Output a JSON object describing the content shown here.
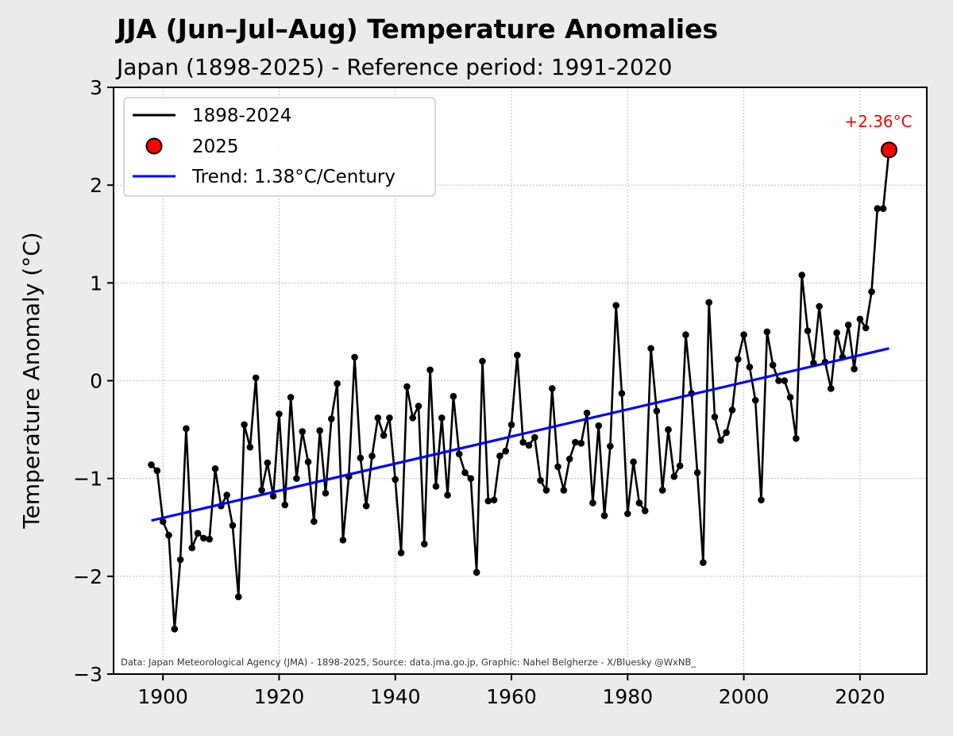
{
  "chart_data": {
    "type": "line",
    "title": "JJA (Jun–Jul–Aug) Temperature Anomalies",
    "subtitle": "Japan (1898-2025) - Reference period: 1991-2020",
    "ylabel": "Temperature Anomaly (°C)",
    "xlabel": "",
    "xlim": [
      1891.5,
      2031.5
    ],
    "ylim": [
      -3,
      3
    ],
    "xticks": [
      1900,
      1920,
      1940,
      1960,
      1980,
      2000,
      2020
    ],
    "yticks": [
      -3,
      -2,
      -1,
      0,
      1,
      2,
      3
    ],
    "ytick_labels": [
      "−3",
      "−2",
      "−1",
      "0",
      "1",
      "2",
      "3"
    ],
    "grid": true,
    "legend_position": "top-left",
    "series": [
      {
        "name": "1898-2024",
        "color": "#000000",
        "x": [
          1898,
          1899,
          1900,
          1901,
          1902,
          1903,
          1904,
          1905,
          1906,
          1907,
          1908,
          1909,
          1910,
          1911,
          1912,
          1913,
          1914,
          1915,
          1916,
          1917,
          1918,
          1919,
          1920,
          1921,
          1922,
          1923,
          1924,
          1925,
          1926,
          1927,
          1928,
          1929,
          1930,
          1931,
          1932,
          1933,
          1934,
          1935,
          1936,
          1937,
          1938,
          1939,
          1940,
          1941,
          1942,
          1943,
          1944,
          1945,
          1946,
          1947,
          1948,
          1949,
          1950,
          1951,
          1952,
          1953,
          1954,
          1955,
          1956,
          1957,
          1958,
          1959,
          1960,
          1961,
          1962,
          1963,
          1964,
          1965,
          1966,
          1967,
          1968,
          1969,
          1970,
          1971,
          1972,
          1973,
          1974,
          1975,
          1976,
          1977,
          1978,
          1979,
          1980,
          1981,
          1982,
          1983,
          1984,
          1985,
          1986,
          1987,
          1988,
          1989,
          1990,
          1991,
          1992,
          1993,
          1994,
          1995,
          1996,
          1997,
          1998,
          1999,
          2000,
          2001,
          2002,
          2003,
          2004,
          2005,
          2006,
          2007,
          2008,
          2009,
          2010,
          2011,
          2012,
          2013,
          2014,
          2015,
          2016,
          2017,
          2018,
          2019,
          2020,
          2021,
          2022,
          2023,
          2024
        ],
        "y": [
          -0.86,
          -0.92,
          -1.44,
          -1.58,
          -2.54,
          -1.83,
          -0.49,
          -1.71,
          -1.56,
          -1.61,
          -1.62,
          -0.9,
          -1.28,
          -1.17,
          -1.48,
          -2.21,
          -0.45,
          -0.68,
          0.03,
          -1.12,
          -0.84,
          -1.18,
          -0.34,
          -1.27,
          -0.17,
          -1.0,
          -0.52,
          -0.83,
          -1.44,
          -0.51,
          -1.15,
          -0.39,
          -0.03,
          -1.63,
          -0.98,
          0.24,
          -0.79,
          -1.28,
          -0.77,
          -0.38,
          -0.56,
          -0.38,
          -1.01,
          -1.76,
          -0.06,
          -0.38,
          -0.26,
          -1.67,
          0.11,
          -1.08,
          -0.38,
          -1.17,
          -0.16,
          -0.75,
          -0.94,
          -1.0,
          -1.96,
          0.2,
          -1.23,
          -1.22,
          -0.77,
          -0.72,
          -0.45,
          0.26,
          -0.63,
          -0.66,
          -0.58,
          -1.02,
          -1.12,
          -0.08,
          -0.88,
          -1.12,
          -0.8,
          -0.63,
          -0.64,
          -0.33,
          -1.25,
          -0.46,
          -1.38,
          -0.67,
          0.77,
          -0.13,
          -1.36,
          -0.83,
          -1.25,
          -1.33,
          0.33,
          -0.31,
          -1.12,
          -0.5,
          -0.98,
          -0.87,
          0.47,
          -0.13,
          -0.94,
          -1.86,
          0.8,
          -0.37,
          -0.61,
          -0.53,
          -0.3,
          0.22,
          0.47,
          0.14,
          -0.2,
          -1.22,
          0.5,
          0.16,
          0.0,
          0.0,
          -0.17,
          -0.59,
          1.08,
          0.51,
          0.18,
          0.76,
          0.19,
          -0.08,
          0.49,
          0.24,
          0.57,
          0.12,
          0.63,
          0.54,
          0.91,
          1.76,
          1.76
        ]
      },
      {
        "name": "2025",
        "color": "#ff0000",
        "x": [
          2025
        ],
        "y": [
          2.36
        ],
        "label": "+2.36°C"
      },
      {
        "name": "Trend: 1.38°C/Century",
        "color": "#0000ff",
        "x": [
          1898,
          2025
        ],
        "y": [
          -1.43,
          0.33
        ]
      }
    ],
    "annotations": [
      "Data: Japan Meteorological Agency (JMA) - 1898-2025, Source: data.jma.go.jp, Graphic: Nahel Belgherze - X/Bluesky @WxNB_"
    ]
  }
}
